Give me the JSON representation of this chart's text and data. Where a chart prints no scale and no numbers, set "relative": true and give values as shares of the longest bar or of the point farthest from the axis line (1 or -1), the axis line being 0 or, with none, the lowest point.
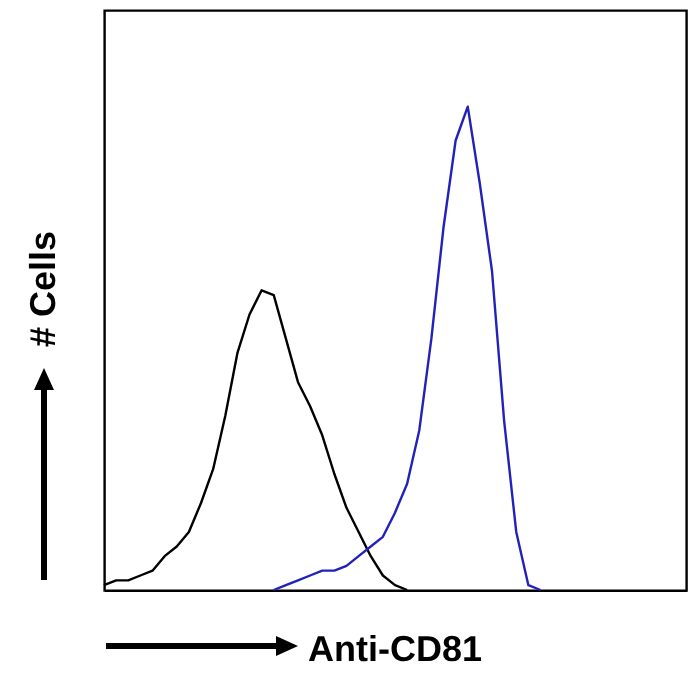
{
  "chart_data": {
    "type": "line",
    "relative": true,
    "xlabel": "Anti-CD81",
    "ylabel": "# Cells",
    "categories": [
      null,
      null,
      null,
      null,
      null,
      null,
      null,
      null,
      null,
      null,
      null,
      null,
      null,
      null,
      null,
      null,
      null,
      null,
      null,
      null,
      null,
      null,
      null,
      null,
      null,
      null,
      null,
      null,
      null,
      null,
      null,
      null,
      null,
      null,
      null,
      null,
      null,
      null,
      null,
      null,
      null,
      null,
      null,
      null,
      null,
      null,
      null,
      null,
      null
    ],
    "series": [
      {
        "color": "#000000",
        "values": [
          0.01,
          0.02,
          0.02,
          0.03,
          0.04,
          0.07,
          0.09,
          0.12,
          0.18,
          0.25,
          0.36,
          0.49,
          0.57,
          0.62,
          0.61,
          0.52,
          0.43,
          0.38,
          0.32,
          0.24,
          0.17,
          0.12,
          0.07,
          0.03,
          0.01,
          0,
          null,
          null,
          null,
          null,
          null,
          null,
          null,
          null,
          null,
          null,
          null,
          null,
          null,
          null,
          null,
          null,
          null,
          null,
          null,
          null,
          null,
          null,
          null
        ]
      },
      {
        "color": "#2222bb",
        "values": [
          null,
          null,
          null,
          null,
          null,
          null,
          null,
          null,
          null,
          null,
          null,
          null,
          null,
          null,
          0,
          0.01,
          0.02,
          0.03,
          0.04,
          0.04,
          0.05,
          0.07,
          0.09,
          0.11,
          0.16,
          0.22,
          0.33,
          0.52,
          0.75,
          0.93,
          1,
          0.84,
          0.66,
          0.35,
          0.12,
          0.01,
          0,
          null,
          null,
          null,
          null,
          null,
          null,
          null,
          null,
          null,
          null,
          null,
          null
        ]
      }
    ]
  }
}
